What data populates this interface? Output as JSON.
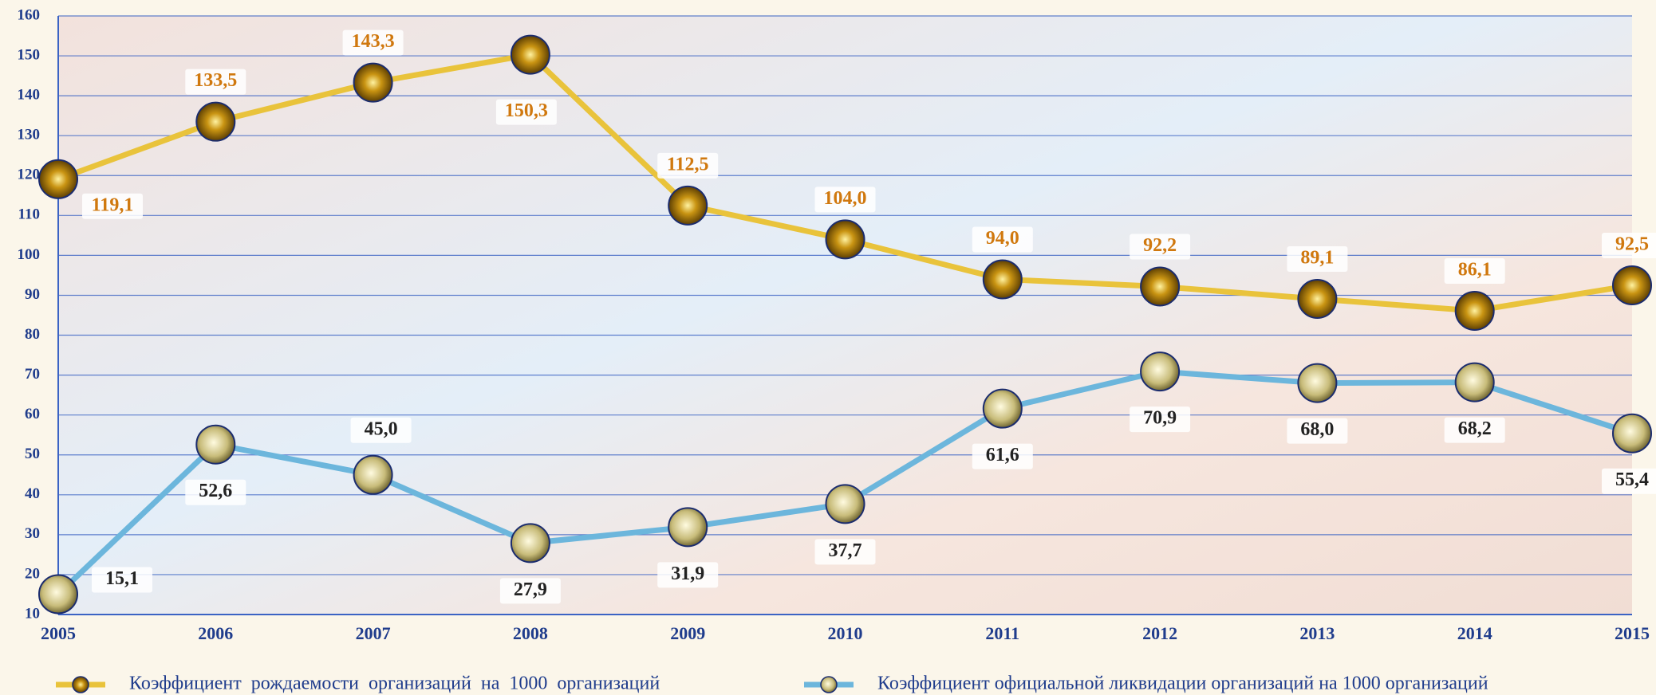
{
  "chart_data": {
    "type": "line",
    "categories": [
      "2005",
      "2006",
      "2007",
      "2008",
      "2009",
      "2010",
      "2011",
      "2012",
      "2013",
      "2014",
      "2015"
    ],
    "ylim": [
      10,
      160
    ],
    "yticks": [
      10,
      20,
      30,
      40,
      50,
      60,
      70,
      80,
      90,
      100,
      110,
      120,
      130,
      140,
      150,
      160
    ],
    "grid": true,
    "series": [
      {
        "name": "Коэффициент  рождаемости  организаций  на  1000  организаций",
        "color": "#e9c33b",
        "values": [
          119.1,
          133.5,
          143.3,
          150.3,
          112.5,
          104.0,
          94.0,
          92.2,
          89.1,
          86.1,
          92.5
        ],
        "value_labels": [
          "119,1",
          "133,5",
          "143,3",
          "150,3",
          "112,5",
          "104,0",
          "94,0",
          "92,2",
          "89,1",
          "86,1",
          "92,5"
        ]
      },
      {
        "name": "Коэффициент официальной ликвидации организаций на 1000 организаций",
        "color": "#6cb6dc",
        "values": [
          15.1,
          52.6,
          45.0,
          27.9,
          31.9,
          37.7,
          61.6,
          70.9,
          68.0,
          68.2,
          55.4
        ],
        "value_labels": [
          "15,1",
          "52,6",
          "45,0",
          "27,9",
          "31,9",
          "37,7",
          "61,6",
          "70,9",
          "68,0",
          "68,2",
          "55,4"
        ]
      }
    ]
  }
}
